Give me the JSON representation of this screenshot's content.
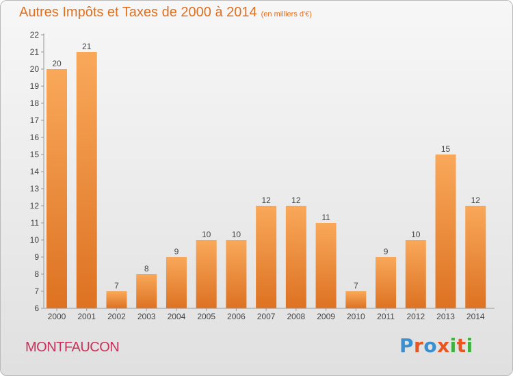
{
  "header": {
    "title": "Autres Impôts et Taxes de 2000 à 2014",
    "subtitle": "(en milliers d'€)"
  },
  "footer": {
    "place": "MONTFAUCON",
    "logo": "Proxiti"
  },
  "colors": {
    "bar_light": "#f9a85a",
    "bar_dark": "#dd7222",
    "title": "#e07020",
    "place": "#c8305a",
    "logo_letters": [
      "#3a8fd0",
      "#e85520",
      "#3a8fd0",
      "#e85520",
      "#40b040",
      "#e85520",
      "#40b040"
    ]
  },
  "chart_data": {
    "type": "bar",
    "categories": [
      "2000",
      "2001",
      "2002",
      "2003",
      "2004",
      "2005",
      "2006",
      "2007",
      "2008",
      "2009",
      "2010",
      "2011",
      "2012",
      "2013",
      "2014"
    ],
    "values": [
      20,
      21,
      7,
      8,
      9,
      10,
      10,
      12,
      12,
      11,
      7,
      9,
      10,
      15,
      12
    ],
    "ylim": [
      6,
      22
    ],
    "yticks": [
      6,
      7,
      8,
      9,
      10,
      11,
      12,
      13,
      14,
      15,
      16,
      17,
      18,
      19,
      20,
      21,
      22
    ],
    "data_labels": true,
    "grid": false
  }
}
